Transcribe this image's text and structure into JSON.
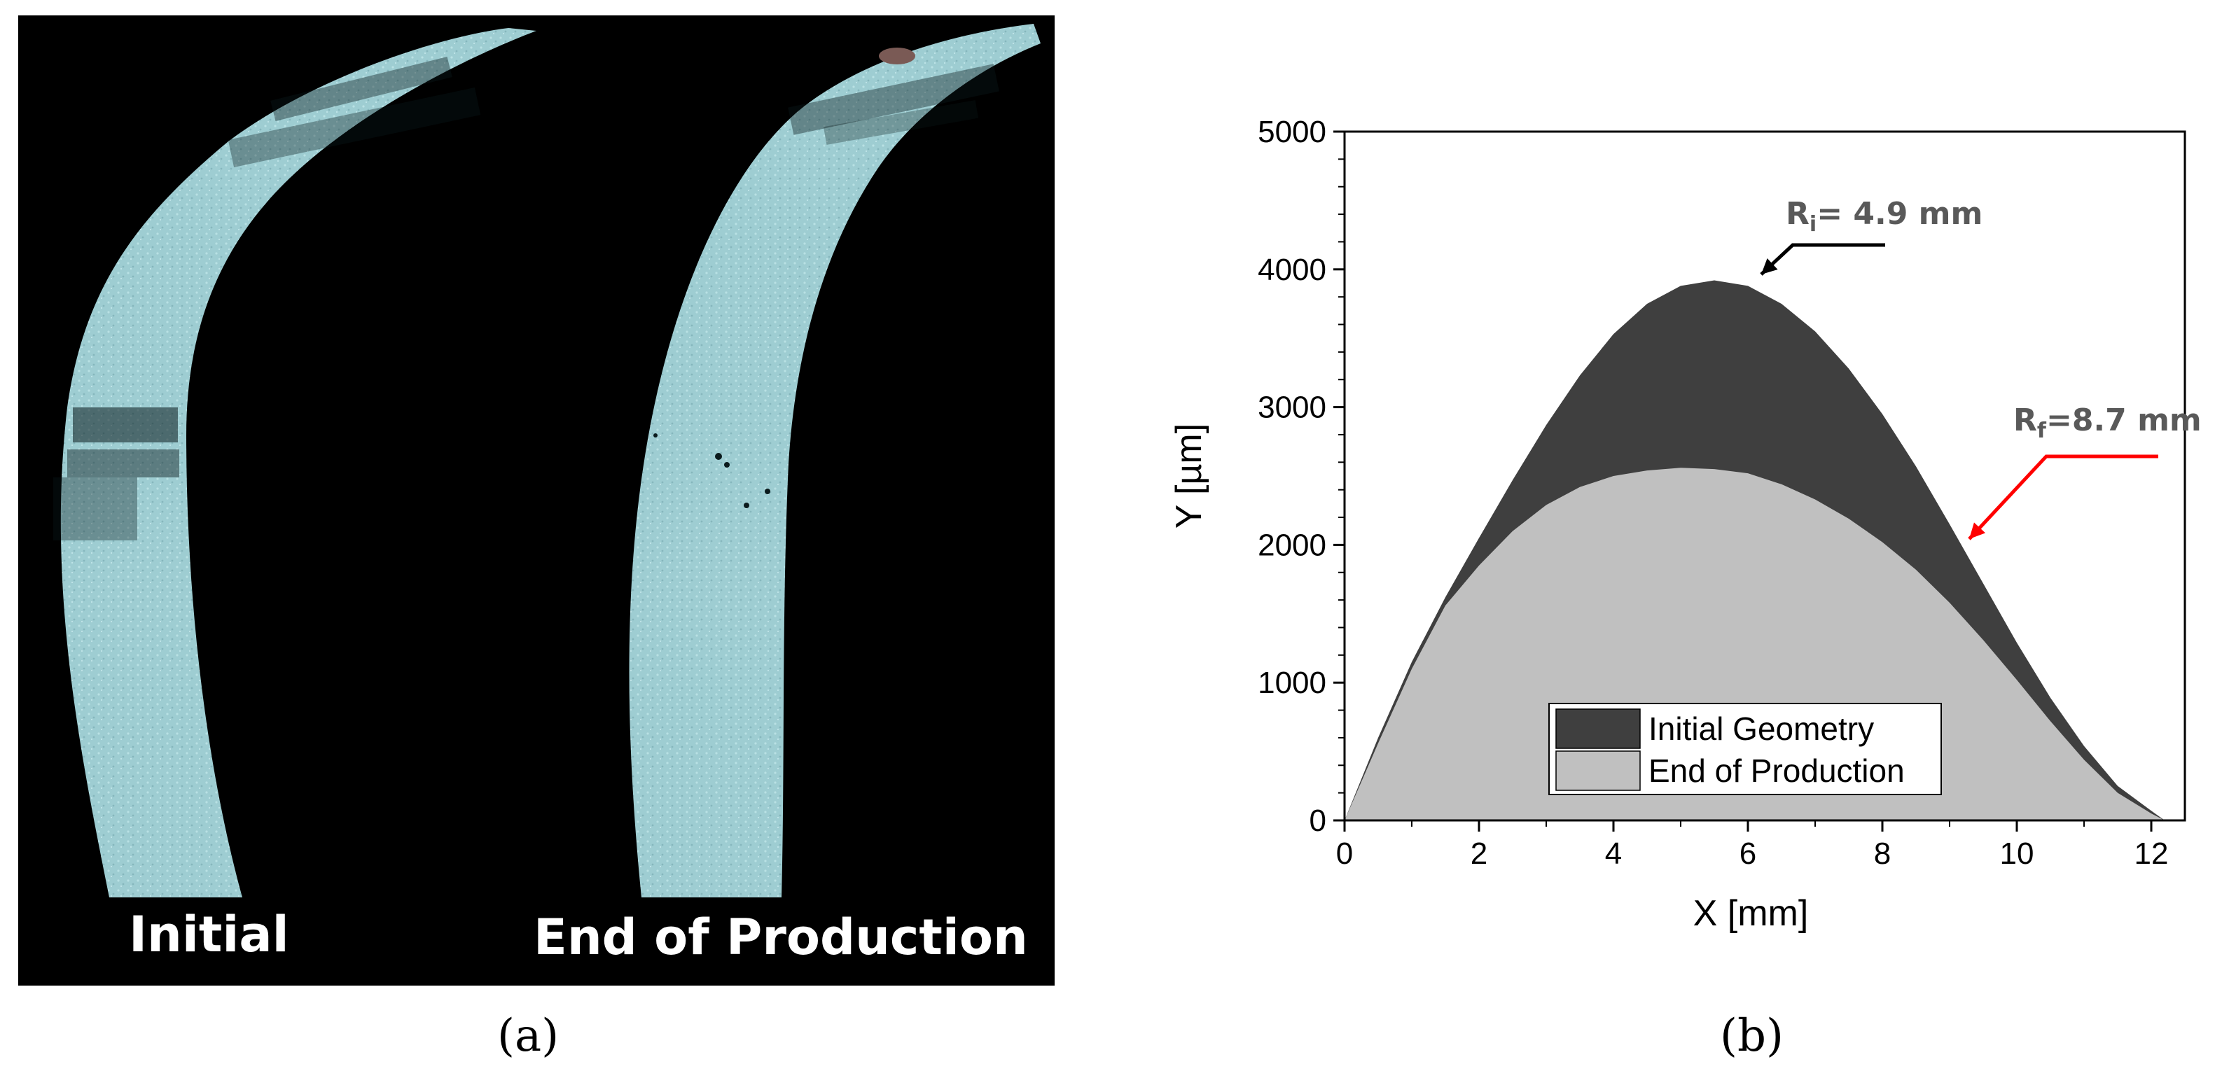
{
  "panel_a": {
    "labels": {
      "initial": "Initial",
      "end_of_production": "End of Production"
    },
    "background_color": "#000000",
    "surface_color": "#9ecdd2",
    "caption": "(a)"
  },
  "panel_b": {
    "caption": "(b)",
    "annotations": {
      "ri": {
        "main": "R",
        "sub": "i",
        "rest": "= 4.9 mm",
        "arrow_color": "#000000"
      },
      "rf": {
        "main": "R",
        "sub": "f",
        "rest": "=8.7 mm",
        "arrow_color": "#ff0000"
      }
    }
  },
  "chart_data": {
    "type": "area",
    "xlabel": "X [mm]",
    "ylabel": "Y [µm]",
    "xlim": [
      0,
      12.5
    ],
    "ylim": [
      0,
      5000
    ],
    "xticks": [
      "0",
      "2",
      "4",
      "6",
      "8",
      "10",
      "12"
    ],
    "yticks": [
      "0",
      "1000",
      "2000",
      "3000",
      "4000",
      "5000"
    ],
    "grid": false,
    "legend_position": "bottom-center",
    "series": [
      {
        "name": "Initial Geometry",
        "color": "#3f3f3f",
        "x": [
          0,
          0.5,
          1.0,
          1.5,
          2.0,
          2.5,
          3.0,
          3.5,
          4.0,
          4.5,
          5.0,
          5.5,
          6.0,
          6.5,
          7.0,
          7.5,
          8.0,
          8.5,
          9.0,
          9.5,
          10.0,
          10.5,
          11.0,
          11.5,
          12.0,
          12.2
        ],
        "y": [
          0,
          600,
          1150,
          1620,
          2050,
          2470,
          2870,
          3230,
          3530,
          3750,
          3880,
          3920,
          3880,
          3750,
          3550,
          3280,
          2950,
          2570,
          2150,
          1720,
          1290,
          890,
          540,
          250,
          70,
          0
        ]
      },
      {
        "name": "End of Production",
        "color": "#c0c0c0",
        "x": [
          0,
          0.5,
          1.0,
          1.5,
          2.0,
          2.5,
          3.0,
          3.5,
          4.0,
          4.5,
          5.0,
          5.5,
          6.0,
          6.5,
          7.0,
          7.5,
          8.0,
          8.5,
          9.0,
          9.5,
          10.0,
          10.5,
          11.0,
          11.5,
          12.0,
          12.2
        ],
        "y": [
          0,
          560,
          1100,
          1560,
          1850,
          2100,
          2290,
          2420,
          2500,
          2540,
          2560,
          2550,
          2520,
          2440,
          2330,
          2190,
          2020,
          1820,
          1580,
          1310,
          1020,
          720,
          440,
          200,
          50,
          0
        ]
      }
    ]
  }
}
